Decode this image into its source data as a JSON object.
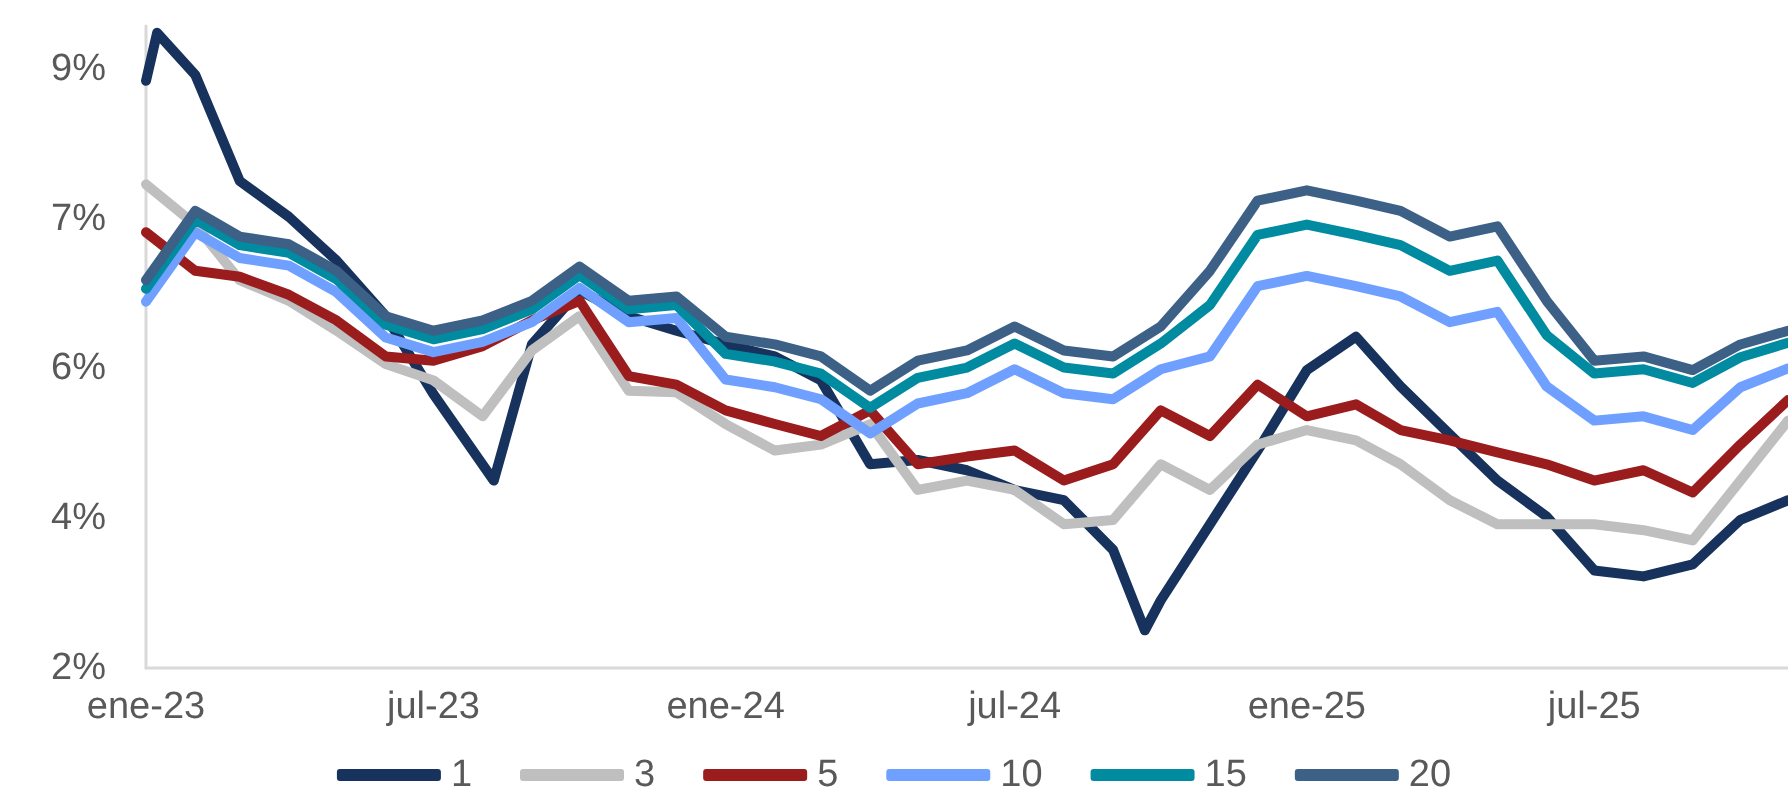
{
  "chart_data": {
    "type": "line",
    "x": [
      "2023-01-01",
      "2023-02-01",
      "2023-03-01",
      "2023-04-01",
      "2023-05-01",
      "2023-06-01",
      "2023-07-01",
      "2023-08-01",
      "2023-09-01",
      "2023-10-01",
      "2023-11-01",
      "2023-12-01",
      "2024-01-01",
      "2024-02-01",
      "2024-03-01",
      "2024-04-01",
      "2024-05-01",
      "2024-06-01",
      "2024-07-01",
      "2024-08-01",
      "2024-09-01",
      "2024-10-01",
      "2024-11-01",
      "2024-12-01",
      "2025-01-01",
      "2025-02-01",
      "2025-03-01",
      "2025-04-01",
      "2025-05-01",
      "2025-06-01",
      "2025-07-01",
      "2025-08-01",
      "2025-09-01",
      "2025-10-01",
      "2025-10-31"
    ],
    "series": [
      {
        "name": "1",
        "color": "#17325c",
        "x": [
          "2023-01-01",
          "2023-01-08",
          "2023-02-01",
          "2023-03-01",
          "2023-04-01",
          "2023-05-01",
          "2023-06-01",
          "2023-07-01",
          "2023-08-08",
          "2023-09-01",
          "2023-10-01",
          "2023-11-01",
          "2023-12-01",
          "2024-01-01",
          "2024-02-01",
          "2024-03-01",
          "2024-04-01",
          "2024-05-01",
          "2024-06-01",
          "2024-07-01",
          "2024-08-01",
          "2024-09-01",
          "2024-09-21",
          "2024-10-01",
          "2024-11-01",
          "2024-12-01",
          "2025-01-01",
          "2025-02-01",
          "2025-03-01",
          "2025-04-01",
          "2025-05-01",
          "2025-06-01",
          "2025-07-01",
          "2025-08-01",
          "2025-09-01",
          "2025-10-01",
          "2025-10-31"
        ],
        "values": [
          8.86,
          9.42,
          8.93,
          7.69,
          7.27,
          6.76,
          6.11,
          5.2,
          4.19,
          5.78,
          6.41,
          6.11,
          5.94,
          5.78,
          5.64,
          5.36,
          4.38,
          4.43,
          4.31,
          4.08,
          3.96,
          3.38,
          2.44,
          2.79,
          3.68,
          4.54,
          5.48,
          5.87,
          5.29,
          4.73,
          4.19,
          3.77,
          3.14,
          3.07,
          3.21,
          3.73,
          3.96
        ]
      },
      {
        "name": "3",
        "color": "#bfbfbf",
        "values": [
          7.65,
          7.18,
          6.53,
          6.29,
          5.94,
          5.55,
          5.36,
          4.94,
          5.71,
          6.11,
          5.24,
          5.22,
          4.85,
          4.54,
          4.61,
          4.85,
          4.08,
          4.19,
          4.08,
          3.68,
          3.73,
          4.38,
          4.08,
          4.61,
          4.78,
          4.66,
          4.38,
          3.96,
          3.68,
          3.68,
          3.68,
          3.61,
          3.49,
          4.19,
          4.89
        ]
      },
      {
        "name": "5",
        "color": "#9b1c1c",
        "values": [
          7.09,
          6.64,
          6.57,
          6.36,
          6.06,
          5.64,
          5.59,
          5.76,
          6.06,
          6.29,
          5.41,
          5.31,
          5.01,
          4.85,
          4.71,
          5.01,
          4.38,
          4.47,
          4.54,
          4.19,
          4.38,
          5.01,
          4.71,
          5.31,
          4.94,
          5.08,
          4.78,
          4.66,
          4.52,
          4.38,
          4.19,
          4.31,
          4.05,
          4.61,
          5.13
        ]
      },
      {
        "name": "10",
        "color": "#6fa0ff",
        "values": [
          6.28,
          7.09,
          6.79,
          6.7,
          6.39,
          5.86,
          5.69,
          5.81,
          6.04,
          6.44,
          6.04,
          6.09,
          5.37,
          5.28,
          5.14,
          4.74,
          5.09,
          5.21,
          5.49,
          5.21,
          5.14,
          5.49,
          5.64,
          6.46,
          6.58,
          6.46,
          6.34,
          6.04,
          6.16,
          5.29,
          4.89,
          4.94,
          4.78,
          5.28,
          5.5
        ]
      },
      {
        "name": "15",
        "color": "#008ba0",
        "values": [
          6.43,
          7.24,
          6.94,
          6.85,
          6.54,
          6.01,
          5.84,
          5.96,
          6.19,
          6.59,
          6.19,
          6.24,
          5.67,
          5.58,
          5.44,
          5.04,
          5.39,
          5.51,
          5.79,
          5.51,
          5.44,
          5.79,
          6.24,
          7.06,
          7.18,
          7.06,
          6.94,
          6.64,
          6.76,
          5.89,
          5.44,
          5.49,
          5.33,
          5.63,
          5.8
        ]
      },
      {
        "name": "20",
        "color": "#3c6086",
        "values": [
          6.53,
          7.34,
          7.04,
          6.95,
          6.64,
          6.11,
          5.94,
          6.06,
          6.29,
          6.69,
          6.29,
          6.34,
          5.87,
          5.78,
          5.64,
          5.24,
          5.59,
          5.71,
          5.99,
          5.71,
          5.64,
          5.99,
          6.64,
          7.46,
          7.58,
          7.46,
          7.34,
          7.04,
          7.16,
          6.29,
          5.59,
          5.64,
          5.48,
          5.78,
          5.94
        ]
      }
    ],
    "xlim": [
      "2023-01-01",
      "2025-10-31"
    ],
    "xticks": [
      {
        "value": "2023-01-01",
        "label": "ene-23"
      },
      {
        "value": "2023-07-01",
        "label": "jul-23"
      },
      {
        "value": "2024-01-01",
        "label": "ene-24"
      },
      {
        "value": "2024-07-01",
        "label": "jul-24"
      },
      {
        "value": "2025-01-01",
        "label": "ene-25"
      },
      {
        "value": "2025-07-01",
        "label": "jul-25"
      }
    ],
    "ylim": [
      2,
      9.5
    ],
    "yticks": [
      {
        "value": 2,
        "label": "2%"
      },
      {
        "value": 3.75,
        "label": "4%"
      },
      {
        "value": 5.5,
        "label": "6%"
      },
      {
        "value": 7.25,
        "label": "7%"
      },
      {
        "value": 9,
        "label": "9%"
      }
    ],
    "grid": false,
    "legend": "bottom",
    "marker": "none",
    "line_style": "solid"
  }
}
